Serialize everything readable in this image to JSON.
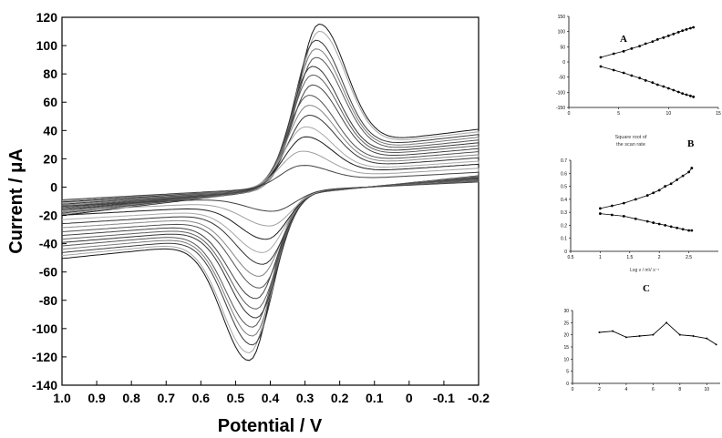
{
  "main_chart": {
    "type": "line",
    "xlabel": "Potential / V",
    "ylabel": "Current / μA",
    "x_ticks": [
      "1.0",
      "0.9",
      "0.8",
      "0.7",
      "0.6",
      "0.5",
      "0.4",
      "0.3",
      "0.2",
      "0.1",
      "0",
      "-0.1",
      "-0.2"
    ],
    "y_ticks": [
      "120",
      "100",
      "80",
      "60",
      "40",
      "20",
      "0",
      "-20",
      "-40",
      "-60",
      "-80",
      "-100",
      "-120",
      "-140"
    ]
  },
  "panel_a": {
    "label": "A",
    "y_ticks": [
      "150",
      "100",
      "50",
      "0",
      "-50",
      "-100",
      "-150"
    ],
    "x_ticks": [
      "0",
      "5",
      "10",
      "15"
    ],
    "xlabel_line1": "Square root of",
    "xlabel_line2": "the scan rate"
  },
  "panel_b": {
    "label": "B",
    "y_ticks": [
      "0.7",
      "0.6",
      "0.5",
      "0.4",
      "0.3",
      "0.2",
      "0.1",
      "0"
    ],
    "x_ticks": [
      "0.5",
      "1",
      "1.5",
      "2",
      "2.5"
    ],
    "xlabel": "Log v / mV s⁻¹"
  },
  "panel_c": {
    "label": "C",
    "y_ticks": [
      "30",
      "25",
      "20",
      "15",
      "10",
      "5",
      "0"
    ],
    "x_ticks": [
      "0",
      "2",
      "4",
      "6",
      "8",
      "10"
    ]
  },
  "chart_data": [
    {
      "type": "line",
      "title": "",
      "xlabel": "Potential / V",
      "ylabel": "Current / μA",
      "xlim": [
        1.0,
        -0.2
      ],
      "ylim": [
        -140,
        120
      ],
      "x_reversed": true,
      "grid": false,
      "series_description_note": "",
      "oxidation_peak_potential": [
        0.26,
        0.26,
        0.27,
        0.27,
        0.27,
        0.28,
        0.28,
        0.28,
        0.29,
        0.29,
        0.29,
        0.3,
        0.3,
        0.31,
        0.31
      ],
      "oxidation_peak_current": [
        113,
        108,
        102,
        96,
        90,
        84,
        78,
        71,
        64,
        57,
        50,
        42,
        35,
        25,
        15
      ],
      "reduction_peak_potential": [
        0.46,
        0.46,
        0.45,
        0.45,
        0.45,
        0.44,
        0.44,
        0.44,
        0.43,
        0.43,
        0.42,
        0.42,
        0.41,
        0.4,
        0.39
      ],
      "reduction_peak_current": [
        -114,
        -109,
        -104,
        -98,
        -92,
        -86,
        -80,
        -73,
        -66,
        -58,
        -50,
        -42,
        -33,
        -24,
        -14
      ]
    },
    {
      "type": "scatter",
      "panel": "A",
      "xlim": [
        0,
        15
      ],
      "ylim": [
        -150,
        150
      ],
      "series": [
        {
          "x": [
            3.2,
            4.5,
            5.5,
            6.3,
            7.1,
            7.7,
            8.4,
            8.9,
            9.5,
            10,
            10.5,
            11,
            11.4,
            11.8,
            12.2,
            12.5
          ],
          "values": [
            15,
            27,
            35,
            44,
            52,
            60,
            67,
            74,
            80,
            86,
            92,
            98,
            103,
            107,
            111,
            114
          ]
        },
        {
          "x": [
            3.2,
            4.5,
            5.5,
            6.3,
            7.1,
            7.7,
            8.4,
            8.9,
            9.5,
            10,
            10.5,
            11,
            11.4,
            11.8,
            12.2,
            12.5
          ],
          "values": [
            -15,
            -27,
            -36,
            -45,
            -53,
            -61,
            -68,
            -75,
            -81,
            -87,
            -93,
            -99,
            -104,
            -108,
            -112,
            -115
          ]
        }
      ]
    },
    {
      "type": "scatter",
      "panel": "B",
      "xlim": [
        0.5,
        3
      ],
      "ylim": [
        0,
        0.7
      ],
      "series": [
        {
          "x": [
            1.0,
            1.2,
            1.4,
            1.6,
            1.8,
            1.9,
            2.0,
            2.1,
            2.2,
            2.3,
            2.4,
            2.5,
            2.55
          ],
          "values": [
            0.33,
            0.35,
            0.37,
            0.4,
            0.43,
            0.45,
            0.47,
            0.5,
            0.52,
            0.55,
            0.58,
            0.61,
            0.64
          ]
        },
        {
          "x": [
            1.0,
            1.2,
            1.4,
            1.6,
            1.8,
            1.9,
            2.0,
            2.1,
            2.2,
            2.3,
            2.4,
            2.5,
            2.55
          ],
          "values": [
            0.29,
            0.28,
            0.27,
            0.25,
            0.23,
            0.22,
            0.21,
            0.2,
            0.19,
            0.18,
            0.17,
            0.16,
            0.16
          ]
        }
      ]
    },
    {
      "type": "line",
      "panel": "C",
      "xlim": [
        0,
        11
      ],
      "ylim": [
        0,
        30
      ],
      "series": [
        {
          "x": [
            2,
            3,
            4,
            5,
            6,
            7,
            8,
            9,
            10,
            10.7
          ],
          "values": [
            21,
            21.5,
            19,
            19.5,
            20,
            25,
            20,
            19.5,
            18.5,
            16
          ]
        }
      ]
    }
  ]
}
